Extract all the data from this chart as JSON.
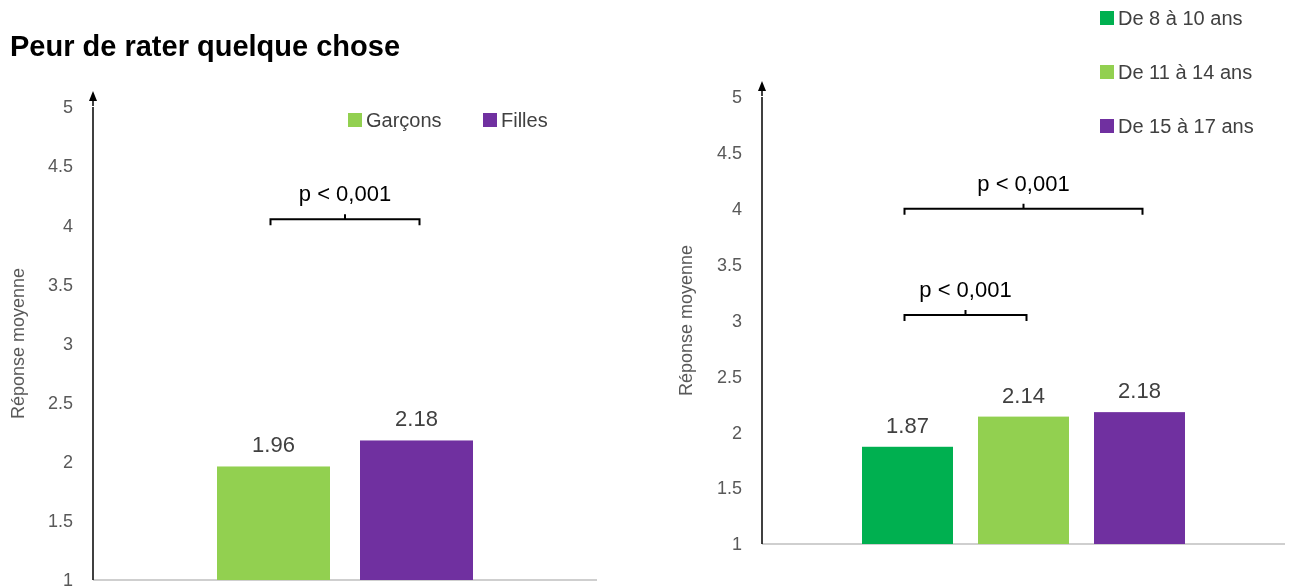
{
  "chart_data": [
    {
      "type": "bar",
      "title": "Peur de rater quelque chose",
      "ylabel": "Réponse moyenne",
      "categories": [
        null
      ],
      "series": [
        {
          "name": "Garçons",
          "color": "#92d050",
          "values": [
            1.96
          ]
        },
        {
          "name": "Filles",
          "color": "#7030a0",
          "values": [
            2.18
          ]
        }
      ],
      "ylim": [
        1,
        5
      ],
      "yticks": [
        1,
        1.5,
        2,
        2.5,
        3,
        3.5,
        4,
        4.5,
        5
      ],
      "data_labels": true,
      "legend": "top right",
      "grid": false,
      "annotations": [
        "p < 0,001"
      ]
    },
    {
      "type": "bar",
      "ylabel": "Réponse moyenne",
      "categories": [
        null
      ],
      "series": [
        {
          "name": "De 8 à 10 ans",
          "color": "#00b050",
          "values": [
            1.87
          ]
        },
        {
          "name": "De 11 à 14 ans",
          "color": "#92d050",
          "values": [
            2.14
          ]
        },
        {
          "name": "De 15 à 17 ans",
          "color": "#7030a0",
          "values": [
            2.18
          ]
        }
      ],
      "ylim": [
        1,
        5
      ],
      "yticks": [
        1,
        1.5,
        2,
        2.5,
        3,
        3.5,
        4,
        4.5,
        5
      ],
      "data_labels": true,
      "legend": "top right",
      "grid": false,
      "annotations": [
        "p < 0,001",
        "p < 0,001"
      ]
    }
  ]
}
